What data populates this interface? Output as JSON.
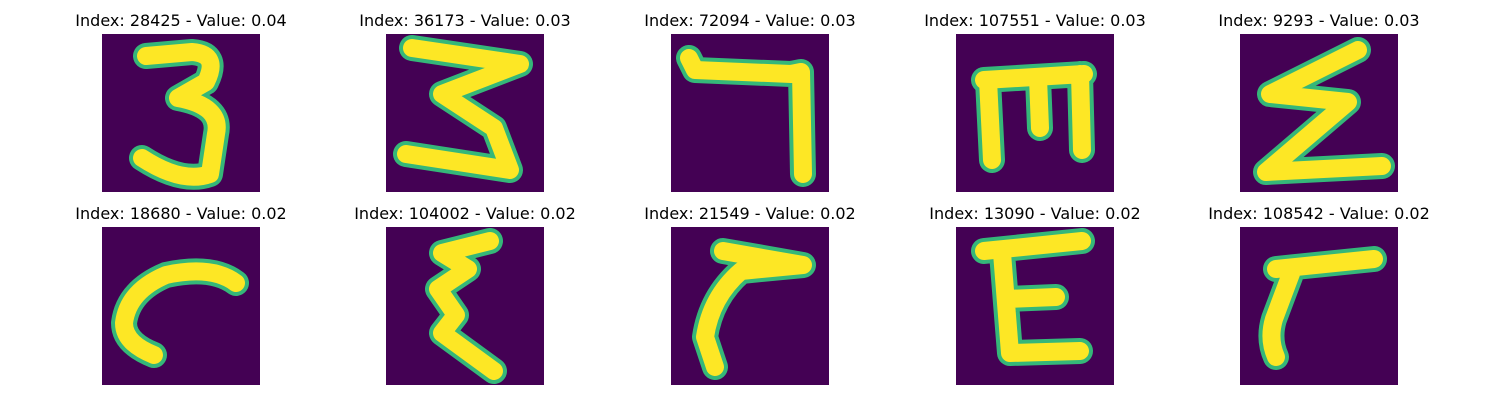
{
  "panels": [
    {
      "title": "Index: 28425 - Value: 0.04",
      "glyph": "digit-3"
    },
    {
      "title": "Index: 36173 - Value: 0.03",
      "glyph": "digit-3-slanted"
    },
    {
      "title": "Index: 72094 - Value: 0.03",
      "glyph": "digit-7"
    },
    {
      "title": "Index: 107551 - Value: 0.03",
      "glyph": "letter-m-rotated"
    },
    {
      "title": "Index: 9293 - Value: 0.03",
      "glyph": "letter-z"
    },
    {
      "title": "Index: 18680 - Value: 0.02",
      "glyph": "hook-stroke"
    },
    {
      "title": "Index: 104002 - Value: 0.02",
      "glyph": "digit-3-reversed"
    },
    {
      "title": "Index: 21549 - Value: 0.02",
      "glyph": "digit-7-curved"
    },
    {
      "title": "Index: 13090 - Value: 0.02",
      "glyph": "letter-e"
    },
    {
      "title": "Index: 108542 - Value: 0.02",
      "glyph": "digit-7-thick"
    }
  ],
  "colors": {
    "background": "#440154",
    "stroke": "#fde725",
    "edge": "#35b779"
  }
}
